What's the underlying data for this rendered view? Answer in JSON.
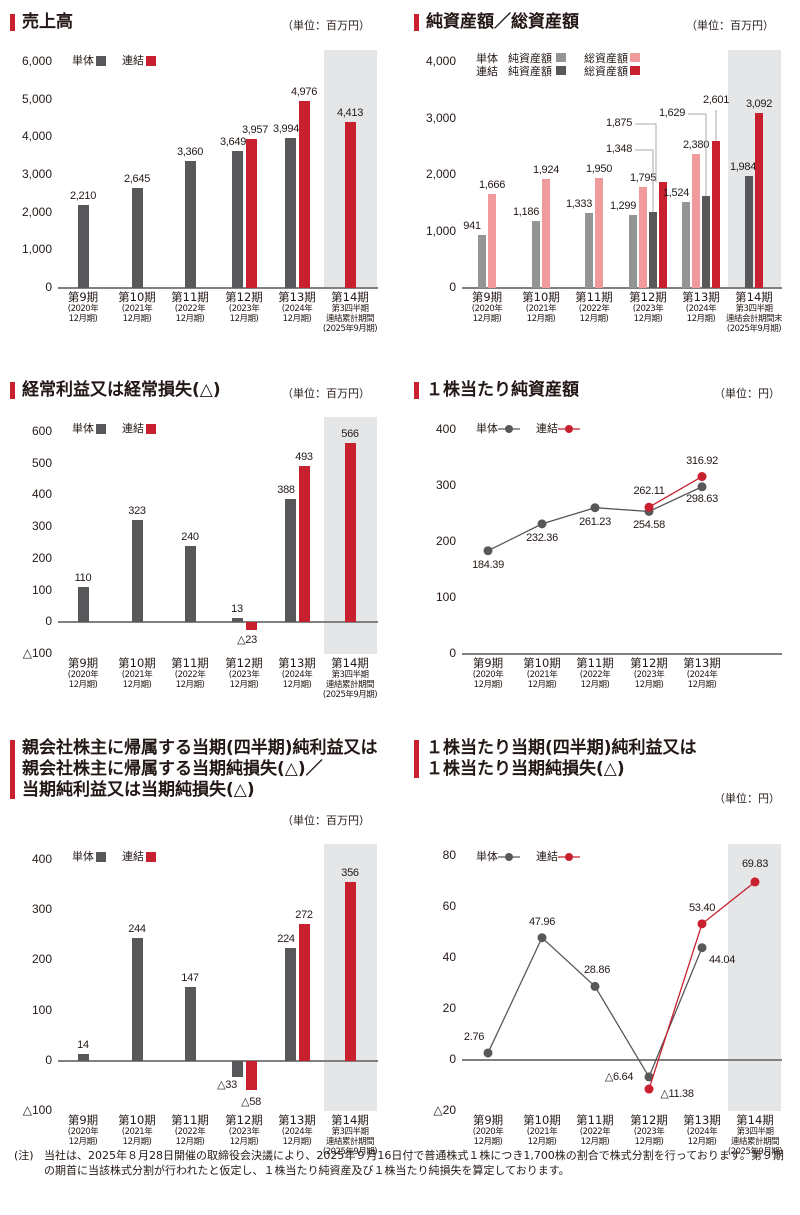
{
  "colors": {
    "accent": "#c8202f",
    "tantai_bar": "#58585a",
    "renketsu_bar": "#c8202f",
    "tantai_net_assets": "#939496",
    "tantai_total_assets": "#f09a9c",
    "renketsu_net_assets": "#58585a",
    "renketsu_total_assets": "#c8202f",
    "shade": "#e4e6e7"
  },
  "legend": {
    "tantai": "単体",
    "renketsu": "連結",
    "net_assets": "純資産額",
    "total_assets": "総資産額"
  },
  "periods": [
    {
      "period": "第9期",
      "sub": [
        "(2020年",
        "12月期)"
      ]
    },
    {
      "period": "第10期",
      "sub": [
        "(2021年",
        "12月期)"
      ]
    },
    {
      "period": "第11期",
      "sub": [
        "(2022年",
        "12月期)"
      ]
    },
    {
      "period": "第12期",
      "sub": [
        "(2023年",
        "12月期)"
      ]
    },
    {
      "period": "第13期",
      "sub": [
        "(2024年",
        "12月期)"
      ]
    },
    {
      "period": "第14期",
      "sub": [
        "第3四半期",
        "連結累計期間",
        "(2025年9月期)"
      ]
    }
  ],
  "periods_bs": [
    {
      "period": "第14期",
      "sub": [
        "第3四半期",
        "連結会計期間末",
        "(2025年9月期)"
      ]
    }
  ],
  "chart_data": [
    {
      "id": "sales",
      "type": "bar",
      "title": "売上高",
      "unit": "（単位：百万円）",
      "categories": [
        "第9期",
        "第10期",
        "第11期",
        "第12期",
        "第13期",
        "第14期"
      ],
      "series": [
        {
          "name": "単体",
          "values": [
            2210,
            2645,
            3360,
            3649,
            3994,
            null
          ]
        },
        {
          "name": "連結",
          "values": [
            null,
            null,
            null,
            3957,
            4976,
            4413
          ]
        }
      ],
      "labels": {
        "単体": [
          "2,210",
          "2,645",
          "3,360",
          "3,649",
          "3,994",
          null
        ],
        "連結": [
          null,
          null,
          null,
          "3,957",
          "4,976",
          "4,413"
        ]
      },
      "yticks": [
        "6,000",
        "5,000",
        "4,000",
        "3,000",
        "2,000",
        "1,000",
        "0"
      ],
      "ylim": [
        0,
        6000
      ]
    },
    {
      "id": "assets",
      "type": "bar",
      "title": "純資産額／総資産額",
      "unit": "（単位：百万円）",
      "categories": [
        "第9期",
        "第10期",
        "第11期",
        "第12期",
        "第13期",
        "第14期"
      ],
      "series": [
        {
          "name": "単体 純資産額",
          "values": [
            941,
            1186,
            1333,
            1299,
            1524,
            null
          ]
        },
        {
          "name": "単体 総資産額",
          "values": [
            1666,
            1924,
            1950,
            1795,
            2380,
            null
          ]
        },
        {
          "name": "連結 純資産額",
          "values": [
            null,
            null,
            null,
            1348,
            1629,
            1984
          ]
        },
        {
          "name": "連結 総資産額",
          "values": [
            null,
            null,
            null,
            1875,
            2601,
            3092
          ]
        }
      ],
      "labels": {
        "単体 純資産額": [
          "941",
          "1,186",
          "1,333",
          "1,299",
          "1,524",
          null
        ],
        "単体 総資産額": [
          "1,666",
          "1,924",
          "1,950",
          "1,795",
          "2,380",
          null
        ],
        "連結 純資産額": [
          null,
          null,
          null,
          "1,348",
          "1,629",
          "1,984"
        ],
        "連結 総資産額": [
          null,
          null,
          null,
          "1,875",
          "2,601",
          "3,092"
        ]
      },
      "yticks": [
        "4,000",
        "3,000",
        "2,000",
        "1,000",
        "0"
      ],
      "ylim": [
        0,
        4000
      ]
    },
    {
      "id": "ordinary",
      "type": "bar",
      "title": "経常利益又は経常損失(△)",
      "unit": "（単位：百万円）",
      "categories": [
        "第9期",
        "第10期",
        "第11期",
        "第12期",
        "第13期",
        "第14期"
      ],
      "series": [
        {
          "name": "単体",
          "values": [
            110,
            323,
            240,
            13,
            388,
            null
          ]
        },
        {
          "name": "連結",
          "values": [
            null,
            null,
            null,
            -23,
            493,
            566
          ]
        }
      ],
      "labels": {
        "単体": [
          "110",
          "323",
          "240",
          "13",
          "388",
          null
        ],
        "連結": [
          null,
          null,
          null,
          "△23",
          "493",
          "566"
        ]
      },
      "yticks": [
        "600",
        "500",
        "400",
        "300",
        "200",
        "100",
        "0",
        "△100"
      ],
      "ylim": [
        -100,
        600
      ]
    },
    {
      "id": "bps",
      "type": "line",
      "title": "１株当たり純資産額",
      "unit": "（単位：円）",
      "categories": [
        "第9期",
        "第10期",
        "第11期",
        "第12期",
        "第13期"
      ],
      "series": [
        {
          "name": "単体",
          "values": [
            184.39,
            232.36,
            261.23,
            254.58,
            298.63
          ]
        },
        {
          "name": "連結",
          "values": [
            null,
            null,
            null,
            262.11,
            316.92
          ]
        }
      ],
      "labels": {
        "単体": [
          "184.39",
          "232.36",
          "261.23",
          "254.58",
          "298.63"
        ],
        "連結": [
          null,
          null,
          null,
          "262.11",
          "316.92"
        ]
      },
      "yticks": [
        "400",
        "300",
        "200",
        "100",
        "0"
      ],
      "ylim": [
        0,
        400
      ]
    },
    {
      "id": "net_income",
      "type": "bar",
      "title": "親会社株主に帰属する当期(四半期)純利益又は 親会社株主に帰属する当期純損失(△)／ 当期純利益又は当期純損失(△)",
      "unit": "（単位：百万円）",
      "categories": [
        "第9期",
        "第10期",
        "第11期",
        "第12期",
        "第13期",
        "第14期"
      ],
      "series": [
        {
          "name": "単体",
          "values": [
            14,
            244,
            147,
            -33,
            224,
            null
          ]
        },
        {
          "name": "連結",
          "values": [
            null,
            null,
            null,
            -58,
            272,
            356
          ]
        }
      ],
      "labels": {
        "単体": [
          "14",
          "244",
          "147",
          "△33",
          "224",
          null
        ],
        "連結": [
          null,
          null,
          null,
          "△58",
          "272",
          "356"
        ]
      },
      "yticks": [
        "400",
        "300",
        "200",
        "100",
        "0",
        "△100"
      ],
      "ylim": [
        -100,
        400
      ]
    },
    {
      "id": "eps",
      "type": "line",
      "title": "１株当たり当期(四半期)純利益又は １株当たり当期純損失(△)",
      "unit": "（単位：円）",
      "categories": [
        "第9期",
        "第10期",
        "第11期",
        "第12期",
        "第13期",
        "第14期"
      ],
      "series": [
        {
          "name": "単体",
          "values": [
            2.76,
            47.96,
            28.86,
            -6.64,
            44.04,
            null
          ]
        },
        {
          "name": "連結",
          "values": [
            null,
            null,
            null,
            -11.38,
            53.4,
            69.83
          ]
        }
      ],
      "labels": {
        "単体": [
          "2.76",
          "47.96",
          "28.86",
          "△6.64",
          "44.04",
          null
        ],
        "連結": [
          null,
          null,
          null,
          "△11.38",
          "53.40",
          "69.83"
        ]
      },
      "yticks": [
        "80",
        "60",
        "40",
        "20",
        "0",
        "△20"
      ],
      "ylim": [
        -20,
        80
      ]
    }
  ],
  "titles": {
    "sales": "売上高",
    "assets": "純資産額／総資産額",
    "ordinary": "経常利益又は経常損失(△)",
    "bps": "１株当たり純資産額",
    "net_income": [
      "親会社株主に帰属する当期(四半期)純利益又は",
      "親会社株主に帰属する当期純損失(△)／",
      "当期純利益又は当期純損失(△)"
    ],
    "eps": [
      "１株当たり当期(四半期)純利益又は",
      "１株当たり当期純損失(△)"
    ]
  },
  "units": {
    "million_yen": "（単位：百万円）",
    "yen": "（単位：円）"
  },
  "note": {
    "label": "(注)",
    "text": "当社は、2025年８月28日開催の取締役会決議により、2025年９月16日付で普通株式１株につき1,700株の割合で株式分割を行っております。第９期の期首に当該株式分割が行われたと仮定し、１株当たり純資産及び１株当たり純損失を算定しております。"
  }
}
